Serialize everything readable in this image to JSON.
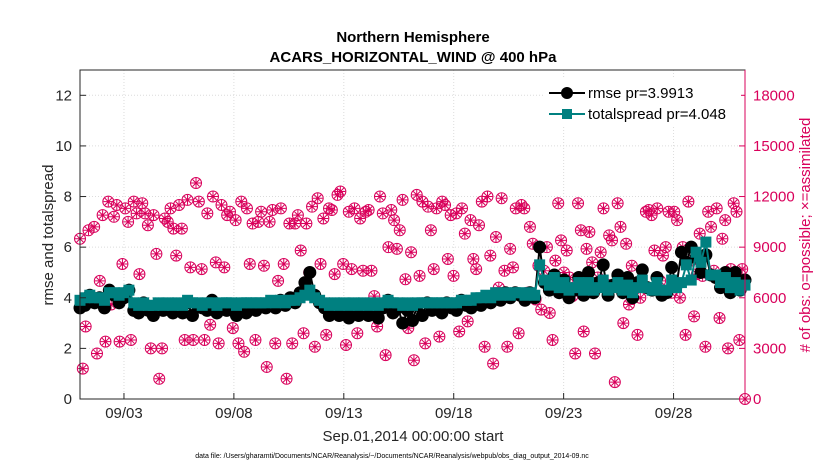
{
  "chart_data": {
    "type": "line",
    "title": "Northern Hemisphere",
    "subtitle": "ACARS_HORIZONTAL_WIND @ 400 hPa",
    "xlabel": "Sep.01,2014 00:00:00 start",
    "ylabel": "rmse and totalspread",
    "y2label": "# of obs: o=possible; ×=assimilated",
    "footnote": "data file: /Users/gharamti/Documents/NCAR/Reanalysis/~/Documents/NCAR/Reanalysis/webpub/obs_diag_output_2014-09.nc",
    "xlim": [
      1.0,
      31.25
    ],
    "ylim": [
      0,
      13
    ],
    "y2lim": [
      0,
      19500
    ],
    "x_ticks": [
      3,
      8,
      13,
      18,
      23,
      28
    ],
    "x_tick_labels": [
      "09/03",
      "09/08",
      "09/13",
      "09/18",
      "09/23",
      "09/28"
    ],
    "y_ticks": [
      0,
      2,
      4,
      6,
      8,
      10,
      12
    ],
    "y_tick_labels": [
      "0",
      "2",
      "4",
      "6",
      "8",
      "10",
      "12"
    ],
    "y2_ticks": [
      0,
      3000,
      6000,
      9000,
      12000,
      15000,
      18000
    ],
    "y2_tick_labels": [
      "0",
      "3000",
      "6000",
      "9000",
      "12000",
      "15000",
      "18000"
    ],
    "series": [
      {
        "name": "rmse",
        "legend": "rmse pr=3.9913",
        "color": "#000000",
        "marker": "circle",
        "values": [
          3.6,
          3.7,
          4.1,
          3.8,
          4.0,
          3.6,
          4.3,
          4.1,
          3.8,
          4.0,
          4.3,
          3.5,
          3.4,
          3.8,
          3.5,
          3.3,
          3.6,
          3.5,
          3.7,
          3.4,
          3.6,
          3.4,
          3.8,
          3.3,
          3.7,
          3.6,
          3.5,
          3.9,
          3.4,
          3.6,
          3.5,
          3.7,
          3.3,
          3.6,
          3.4,
          3.6,
          3.5,
          3.7,
          3.6,
          3.8,
          3.6,
          3.9,
          3.7,
          4.0,
          3.8,
          4.2,
          4.6,
          5.0,
          4.1,
          3.8,
          3.6,
          3.3,
          3.5,
          3.3,
          3.6,
          3.2,
          3.5,
          3.3,
          3.6,
          3.3,
          3.5,
          3.2,
          3.6,
          3.9,
          3.4,
          3.6,
          3.0,
          3.5,
          3.1,
          3.7,
          3.3,
          3.8,
          3.5,
          3.7,
          3.4,
          3.8,
          3.6,
          3.5,
          3.9,
          3.7,
          3.6,
          3.9,
          3.7,
          4.0,
          3.8,
          4.1,
          3.9,
          4.2,
          4.0,
          4.2,
          4.1,
          3.9,
          4.2,
          4.0,
          6.0,
          4.6,
          4.3,
          4.9,
          4.2,
          4.7,
          4.0,
          4.3,
          4.8,
          4.1,
          5.0,
          4.2,
          4.6,
          5.3,
          4.1,
          4.5,
          4.9,
          4.2,
          4.8,
          4.0,
          4.6,
          5.1,
          4.4,
          4.3,
          4.8,
          4.1,
          4.2,
          5.2,
          4.5,
          5.8,
          5.4,
          6.0,
          5.6,
          5.0,
          5.7,
          4.9,
          4.8,
          4.4,
          5.0,
          4.2,
          5.0,
          4.3,
          4.7
        ]
      },
      {
        "name": "totalspread",
        "legend": "totalspread pr=4.048",
        "color": "#008080",
        "marker": "square",
        "values": [
          3.9,
          4.0,
          4.1,
          4.0,
          4.0,
          3.9,
          4.2,
          4.2,
          4.1,
          4.2,
          4.3,
          3.8,
          3.7,
          3.8,
          3.7,
          3.7,
          3.8,
          3.7,
          3.8,
          3.7,
          3.8,
          3.7,
          3.9,
          3.8,
          3.8,
          3.7,
          3.8,
          3.8,
          3.7,
          3.8,
          3.8,
          3.8,
          3.7,
          3.8,
          3.8,
          3.8,
          3.8,
          3.8,
          3.8,
          3.9,
          3.8,
          3.9,
          3.8,
          3.9,
          3.9,
          4.0,
          4.1,
          4.3,
          4.0,
          3.9,
          3.8,
          3.7,
          3.8,
          3.7,
          3.8,
          3.7,
          3.8,
          3.7,
          3.8,
          3.7,
          3.8,
          3.7,
          3.8,
          3.9,
          3.8,
          3.8,
          3.7,
          3.8,
          3.7,
          3.8,
          3.8,
          3.8,
          3.8,
          3.8,
          3.8,
          3.8,
          3.8,
          3.8,
          3.9,
          3.9,
          3.9,
          4.0,
          4.0,
          4.1,
          4.0,
          4.2,
          4.1,
          4.2,
          4.1,
          4.2,
          4.2,
          4.1,
          4.2,
          4.1,
          5.3,
          4.7,
          4.5,
          4.8,
          4.4,
          4.6,
          4.3,
          4.4,
          4.6,
          4.3,
          4.6,
          4.3,
          4.4,
          4.7,
          4.3,
          4.4,
          4.6,
          4.3,
          4.5,
          4.2,
          4.4,
          4.7,
          4.4,
          4.3,
          4.6,
          4.3,
          4.3,
          4.7,
          4.4,
          4.6,
          5.3,
          4.7,
          5.8,
          5.4,
          6.2,
          4.9,
          4.9,
          4.6,
          4.8,
          4.4,
          4.6,
          4.3,
          4.5
        ]
      },
      {
        "name": "possible",
        "legend": "o=possible",
        "color": "#d9005b",
        "marker": "open-circle",
        "axis": "right",
        "values": [
          9500,
          1800,
          4300,
          10000,
          6000,
          10200,
          2700,
          7000,
          10900,
          3400,
          11700,
          5600,
          10800,
          11500,
          3400,
          8000,
          11300,
          10500,
          3500,
          11700,
          11000,
          7400,
          11600,
          11000,
          10300,
          3000,
          10900,
          8600,
          1200,
          3000,
          10700,
          10500,
          11300,
          10100,
          8500,
          11500,
          10100,
          3500,
          11800,
          7800,
          3500,
          12800,
          11700,
          7700,
          3500,
          11000,
          4400,
          12000,
          8100,
          3300,
          11500,
          7800,
          10900,
          11100,
          4200,
          10600,
          3300,
          11700,
          2800,
          11300,
          8000,
          10400,
          3500,
          10500,
          11100,
          7900,
          1900,
          10500,
          11200,
          3300,
          7000,
          11300,
          8000,
          1200,
          10400,
          3300,
          10400,
          10900,
          8800,
          3900,
          10400,
          7500,
          11400,
          3100,
          11900,
          8000,
          10700,
          3800,
          11300,
          11200,
          7400,
          12100,
          12300,
          8000,
          3200,
          11100,
          7700,
          11300,
          3900,
          10700,
          7600,
          11100,
          11200,
          7600,
          6100,
          4300,
          12000,
          11000,
          2600,
          9000,
          11200,
          10600,
          8900,
          10000,
          11800,
          7100,
          4200,
          8700,
          2300,
          12100,
          7300,
          11700,
          3300,
          11400,
          10000,
          7700,
          11300,
          3700,
          11700,
          11500,
          8300,
          10900,
          7300,
          11000,
          4000,
          11300,
          9800,
          4600,
          10600,
          8300,
          7700,
          10300,
          11700,
          3100,
          12000,
          8500,
          2100,
          9600,
          6600,
          11900,
          7600,
          3100,
          8900,
          7800,
          11300,
          3900,
          11500,
          11300,
          6300,
          10200,
          9200,
          5900,
          7900,
          5300,
          7600,
          9000,
          5100,
          3500,
          8200,
          11600,
          9400,
          7500,
          8800,
          7200,
          6100,
          2700,
          11600,
          10000,
          4000,
          8900,
          9900,
          8100,
          2700,
          7200,
          8700,
          11300,
          6800,
          9700,
          9400,
          1000,
          11600,
          10200,
          4500,
          9200,
          5600,
          7900,
          6500,
          3800,
          6000,
          6700,
          11100,
          11200,
          10900,
          8800,
          11300,
          7000,
          8500,
          9000,
          11100,
          6300,
          11100,
          10600,
          6000,
          9000,
          3800,
          11700,
          8200,
          4900,
          7400,
          9800,
          7300,
          3100,
          11100,
          10200,
          7600,
          11300,
          4800,
          9500,
          10600,
          3000,
          7700,
          11600,
          11100,
          3500,
          7700,
          0
        ]
      }
    ]
  },
  "legend": {
    "rmse_label": "rmse pr=3.9913",
    "spread_label": "totalspread pr=4.048"
  }
}
